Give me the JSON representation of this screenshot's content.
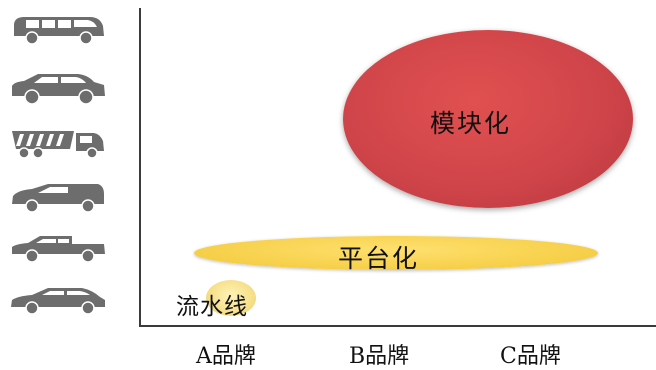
{
  "vehicles": [
    {
      "icon": "minivan-icon"
    },
    {
      "icon": "suv-icon"
    },
    {
      "icon": "dump-truck-icon"
    },
    {
      "icon": "panel-van-icon"
    },
    {
      "icon": "pickup-icon"
    },
    {
      "icon": "hatchback-icon"
    }
  ],
  "ellipses": {
    "modular": {
      "label": "模块化",
      "color": "#d0454a"
    },
    "platform": {
      "label": "平台化",
      "color": "#f6cf48"
    },
    "pipeline": {
      "label": "流水线",
      "color": "#f6e08a"
    }
  },
  "brands": [
    "A品牌",
    "B品牌",
    "C品牌"
  ],
  "colors": {
    "axis": "#3a3a3a",
    "vehicle": "#6d6d6d"
  }
}
